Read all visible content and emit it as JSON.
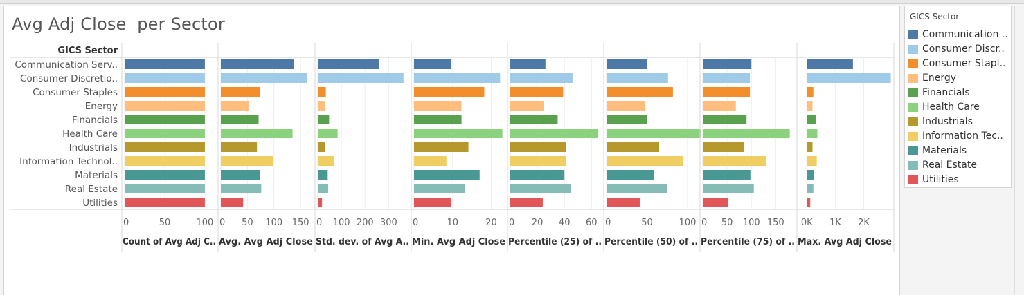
{
  "title": "Avg Adj Close  per Sector",
  "legend": {
    "title": "GICS Sector",
    "items": [
      {
        "label": "Communication ..",
        "color": "#4e79a7"
      },
      {
        "label": "Consumer Discr..",
        "color": "#a0cbe8"
      },
      {
        "label": "Consumer Stapl..",
        "color": "#f28e2b"
      },
      {
        "label": "Energy",
        "color": "#ffbe7d"
      },
      {
        "label": "Financials",
        "color": "#59a14f"
      },
      {
        "label": "Health Care",
        "color": "#8cd17d"
      },
      {
        "label": "Industrials",
        "color": "#b6992d"
      },
      {
        "label": "Information Tec..",
        "color": "#f1ce63"
      },
      {
        "label": "Materials",
        "color": "#499894"
      },
      {
        "label": "Real Estate",
        "color": "#86bcb6"
      },
      {
        "label": "Utilities",
        "color": "#e15759"
      }
    ]
  },
  "chart_data": {
    "type": "bar",
    "orientation": "horizontal",
    "row_header": "GICS Sector",
    "categories": [
      "Communication Serv..",
      "Consumer Discretio..",
      "Consumer Staples",
      "Energy",
      "Financials",
      "Health Care",
      "Industrials",
      "Information Technol..",
      "Materials",
      "Real Estate",
      "Utilities"
    ],
    "colors": [
      "#4e79a7",
      "#a0cbe8",
      "#f28e2b",
      "#ffbe7d",
      "#59a14f",
      "#8cd17d",
      "#b6992d",
      "#f1ce63",
      "#499894",
      "#86bcb6",
      "#e15759"
    ],
    "panels": [
      {
        "label": "Count of Avg Adj C..",
        "xlim": [
          0,
          113
        ],
        "ticks": [
          {
            "v": 0,
            "t": "0"
          },
          {
            "v": 50,
            "t": "50"
          },
          {
            "v": 100,
            "t": "100"
          }
        ],
        "values": [
          100,
          100,
          100,
          100,
          100,
          100,
          100,
          100,
          100,
          100,
          100
        ]
      },
      {
        "label": "Avg. Avg Adj Close",
        "xlim": [
          0,
          172
        ],
        "ticks": [
          {
            "v": 0,
            "t": "0"
          },
          {
            "v": 50,
            "t": "50"
          },
          {
            "v": 100,
            "t": "100"
          },
          {
            "v": 150,
            "t": "150"
          }
        ],
        "values": [
          137,
          162,
          73,
          53,
          71,
          135,
          68,
          98,
          74,
          76,
          42
        ]
      },
      {
        "label": "Std. dev. of Avg A..",
        "xlim": [
          0,
          384
        ],
        "ticks": [
          {
            "v": 0,
            "t": "0"
          },
          {
            "v": 100,
            "t": "100"
          },
          {
            "v": 200,
            "t": "200"
          },
          {
            "v": 300,
            "t": "300"
          }
        ],
        "values": [
          260,
          363,
          34,
          30,
          48,
          84,
          32,
          68,
          42,
          44,
          18
        ]
      },
      {
        "label": "Min. Avg Adj Close",
        "xlim": [
          0,
          23.5
        ],
        "ticks": [
          {
            "v": 0,
            "t": "0"
          },
          {
            "v": 10,
            "t": "10"
          },
          {
            "v": 20,
            "t": "20"
          }
        ],
        "values": [
          9.7,
          22.3,
          18.2,
          12.3,
          12.3,
          22.9,
          14.1,
          8.4,
          17.0,
          13.2,
          9.7
        ]
      },
      {
        "label": "Percentile (25) of ..",
        "xlim": [
          0,
          67
        ],
        "ticks": [
          {
            "v": 0,
            "t": "0"
          },
          {
            "v": 20,
            "t": "20"
          },
          {
            "v": 40,
            "t": "40"
          },
          {
            "v": 60,
            "t": "60"
          }
        ],
        "values": [
          26,
          46,
          39,
          25,
          35,
          65,
          41,
          41,
          40,
          45,
          24
        ]
      },
      {
        "label": "Percentile (50) of ..",
        "xlim": [
          0,
          112
        ],
        "ticks": [
          {
            "v": 0,
            "t": "0"
          },
          {
            "v": 50,
            "t": "50"
          },
          {
            "v": 100,
            "t": "100"
          }
        ],
        "values": [
          50,
          76,
          82,
          48,
          50,
          117,
          65,
          95,
          59,
          75,
          41
        ]
      },
      {
        "label": "Percentile (75) of ..",
        "xlim": [
          0,
          188
        ],
        "ticks": [
          {
            "v": 0,
            "t": "0"
          },
          {
            "v": 50,
            "t": "50"
          },
          {
            "v": 100,
            "t": "100"
          },
          {
            "v": 150,
            "t": "150"
          }
        ],
        "values": [
          100,
          97,
          97,
          68,
          90,
          179,
          85,
          130,
          98,
          105,
          52
        ]
      },
      {
        "label": "Max. Avg Adj Close",
        "xlim": [
          -250,
          2960
        ],
        "ticks": [
          {
            "v": 0,
            "t": "0K"
          },
          {
            "v": 1000,
            "t": "1K"
          },
          {
            "v": 2000,
            "t": "2K"
          }
        ],
        "values": [
          1620,
          2950,
          230,
          200,
          330,
          370,
          200,
          350,
          260,
          230,
          120
        ]
      }
    ]
  }
}
